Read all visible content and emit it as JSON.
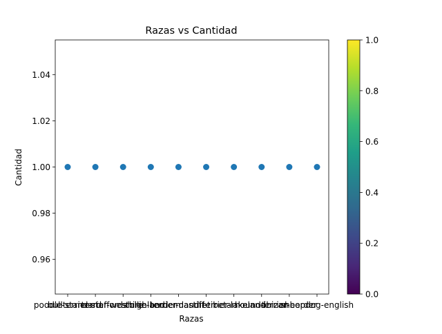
{
  "chart_data": {
    "type": "scatter",
    "title": "Razas vs Cantidad",
    "xlabel": "Razas",
    "ylabel": "Cantidad",
    "categories": [
      "poodle-standard",
      "bullterrier-staffordshire",
      "terrier-westhighland",
      "collie-border",
      "terrier-dandie",
      "mastiff-tibetan",
      "terrier-lakeland",
      "hound-ibizan",
      "terrier-border",
      "sheepdog-english"
    ],
    "values": [
      1,
      1,
      1,
      1,
      1,
      1,
      1,
      1,
      1,
      1
    ],
    "ylim": [
      0.945,
      1.055
    ],
    "yticks": [
      "0.96",
      "0.98",
      "1.00",
      "1.02",
      "1.04"
    ],
    "point_color": "#1f77b4",
    "grid": false,
    "colorbar": {
      "colormap": "viridis",
      "range": [
        0,
        1
      ],
      "ticks": [
        "0.0",
        "0.2",
        "0.4",
        "0.6",
        "0.8",
        "1.0"
      ],
      "colors": [
        "#440154",
        "#482878",
        "#3e4989",
        "#31688e",
        "#26828e",
        "#1f9e89",
        "#35b779",
        "#6ece58",
        "#b5de2b",
        "#fde725"
      ]
    }
  }
}
